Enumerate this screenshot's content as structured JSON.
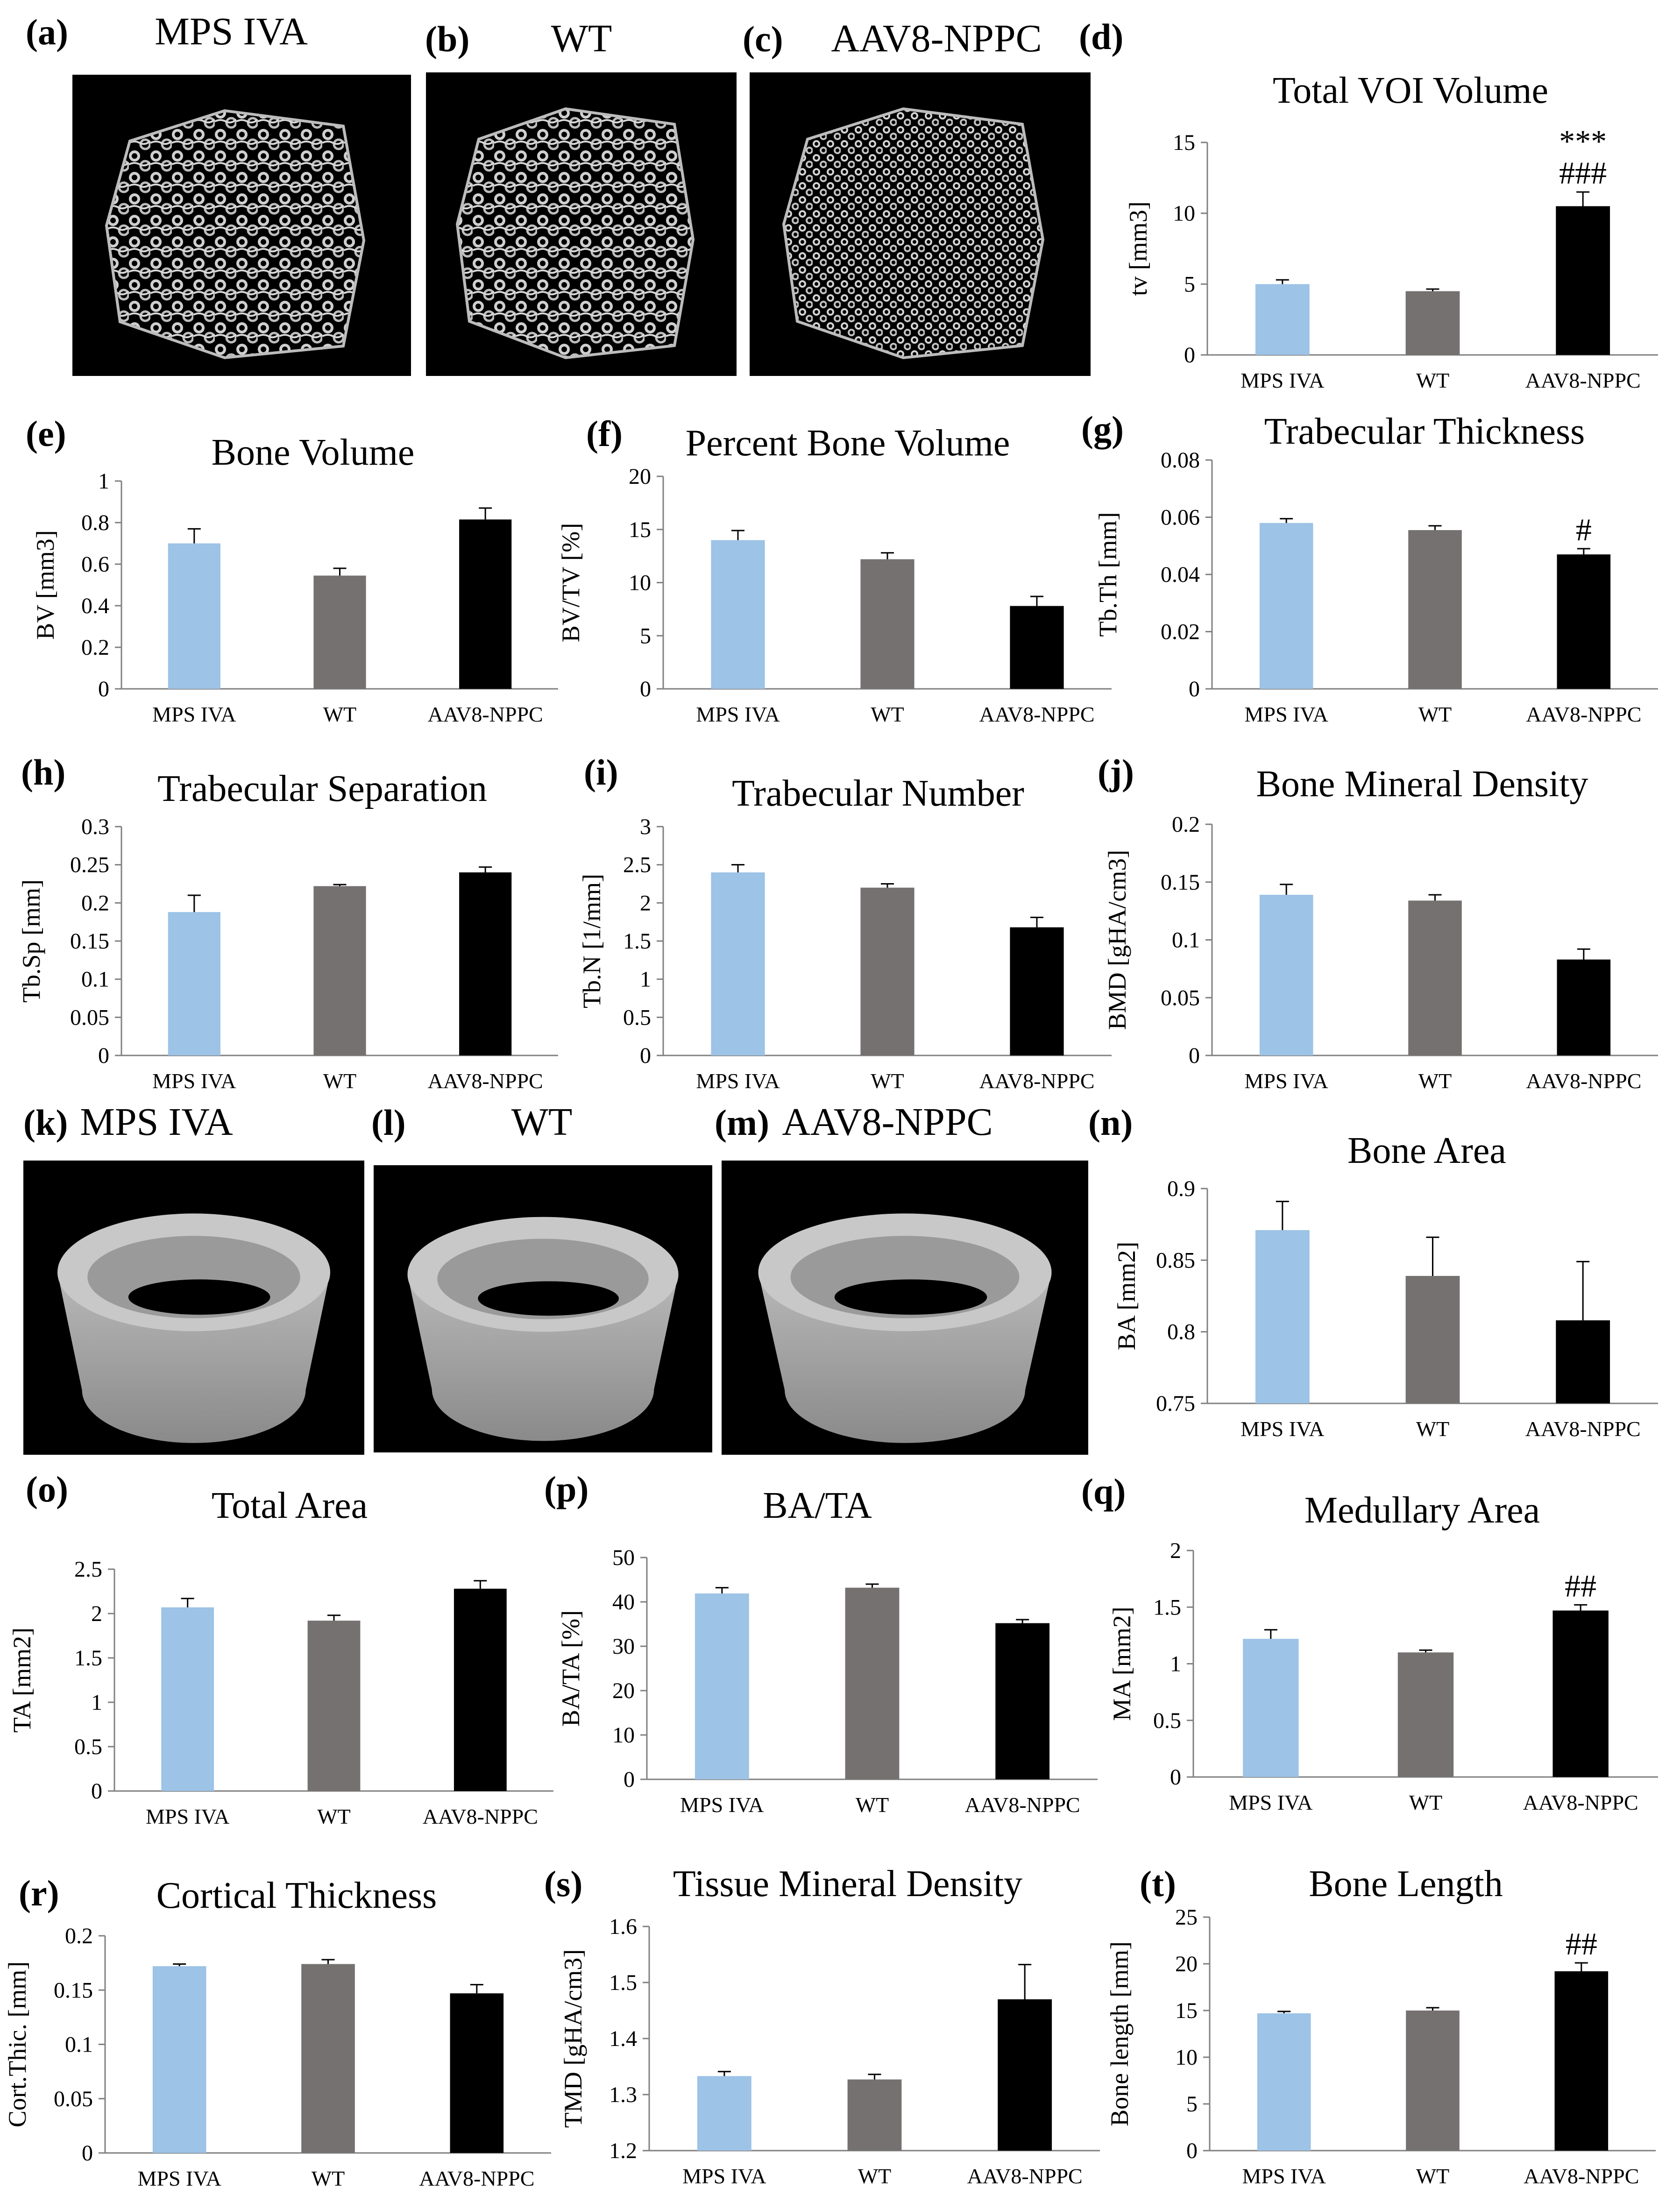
{
  "colors": {
    "mps_iva": "#9dc3e6",
    "wt": "#767171",
    "aav8": "#000000",
    "image_bg": "#000000",
    "bone": "#d0d0d0"
  },
  "image_panels": [
    {
      "id": "a",
      "label": "(a)",
      "title": "MPS IVA",
      "kind": "trabecular"
    },
    {
      "id": "b",
      "label": "(b)",
      "title": "WT",
      "kind": "trabecular"
    },
    {
      "id": "c",
      "label": "(c)",
      "title": "AAV8-NPPC",
      "kind": "trabecular"
    },
    {
      "id": "k",
      "label": "(k)",
      "title": "MPS IVA",
      "kind": "cortical"
    },
    {
      "id": "l",
      "label": "(l)",
      "title": "WT",
      "kind": "cortical"
    },
    {
      "id": "m",
      "label": "(m)",
      "title": "AAV8-NPPC",
      "kind": "cortical"
    }
  ],
  "chart_data": [
    {
      "id": "d",
      "label": "(d)",
      "type": "bar",
      "title": "Total VOI Volume",
      "ylabel": "tv [mm3]",
      "categories": [
        "MPS IVA",
        "WT",
        "AAV8-NPPC"
      ],
      "values": [
        5.0,
        4.5,
        10.5
      ],
      "errors": [
        0.3,
        0.15,
        1.0
      ],
      "ylim": [
        0,
        15
      ],
      "yticks": [
        "0",
        "5",
        "10",
        "15"
      ],
      "annotations": [
        "",
        "",
        "***\n###"
      ]
    },
    {
      "id": "e",
      "label": "(e)",
      "type": "bar",
      "title": "Bone Volume",
      "ylabel": "BV [mm3]",
      "categories": [
        "MPS IVA",
        "WT",
        "AAV8-NPPC"
      ],
      "values": [
        0.7,
        0.545,
        0.815
      ],
      "errors": [
        0.07,
        0.035,
        0.055
      ],
      "ylim": [
        0,
        1
      ],
      "yticks": [
        "0",
        "0.2",
        "0.4",
        "0.6",
        "0.8",
        "1"
      ],
      "annotations": [
        "",
        "",
        ""
      ]
    },
    {
      "id": "f",
      "label": "(f)",
      "type": "bar",
      "title": "Percent Bone Volume",
      "ylabel": "BV/TV [%]",
      "categories": [
        "MPS IVA",
        "WT",
        "AAV8-NPPC"
      ],
      "values": [
        14.0,
        12.2,
        7.8
      ],
      "errors": [
        0.9,
        0.6,
        0.9
      ],
      "ylim": [
        0,
        20
      ],
      "yticks": [
        "0",
        "5",
        "10",
        "15",
        "20"
      ],
      "annotations": [
        "",
        "",
        ""
      ]
    },
    {
      "id": "g",
      "label": "(g)",
      "type": "bar",
      "title": "Trabecular  Thickness",
      "ylabel": "Tb.Th [mm]",
      "categories": [
        "MPS IVA",
        "WT",
        "AAV8-NPPC"
      ],
      "values": [
        0.058,
        0.0555,
        0.047
      ],
      "errors": [
        0.0015,
        0.0015,
        0.002
      ],
      "ylim": [
        0,
        0.08
      ],
      "yticks": [
        "0",
        "0.02",
        "0.04",
        "0.06",
        "0.08"
      ],
      "annotations": [
        "",
        "",
        "#"
      ]
    },
    {
      "id": "h",
      "label": "(h)",
      "type": "bar",
      "title": "Trabecular  Separation",
      "ylabel": "Tb.Sp [mm]",
      "categories": [
        "MPS IVA",
        "WT",
        "AAV8-NPPC"
      ],
      "values": [
        0.188,
        0.222,
        0.24
      ],
      "errors": [
        0.022,
        0.002,
        0.007
      ],
      "ylim": [
        0,
        0.3
      ],
      "yticks": [
        "0",
        "0.05",
        "0.1",
        "0.15",
        "0.2",
        "0.25",
        "0.3"
      ],
      "annotations": [
        "",
        "",
        ""
      ]
    },
    {
      "id": "i",
      "label": "(i)",
      "type": "bar",
      "title": "Trabecular  Number",
      "ylabel": "Tb.N [1/mm]",
      "categories": [
        "MPS IVA",
        "WT",
        "AAV8-NPPC"
      ],
      "values": [
        2.4,
        2.2,
        1.68
      ],
      "errors": [
        0.1,
        0.05,
        0.13
      ],
      "ylim": [
        0,
        3
      ],
      "yticks": [
        "0",
        "0.5",
        "1",
        "1.5",
        "2",
        "2.5",
        "3"
      ],
      "annotations": [
        "",
        "",
        ""
      ]
    },
    {
      "id": "j",
      "label": "(j)",
      "type": "bar",
      "title": "Bone Mineral Density",
      "ylabel": "BMD [gHA/cm3]",
      "categories": [
        "MPS IVA",
        "WT",
        "AAV8-NPPC"
      ],
      "values": [
        0.139,
        0.134,
        0.083
      ],
      "errors": [
        0.009,
        0.005,
        0.009
      ],
      "ylim": [
        0,
        0.2
      ],
      "yticks": [
        "0",
        "0.05",
        "0.1",
        "0.15",
        "0.2"
      ],
      "annotations": [
        "",
        "",
        ""
      ]
    },
    {
      "id": "n",
      "label": "(n)",
      "type": "bar",
      "title": "Bone Area",
      "ylabel": "BA [mm2]",
      "categories": [
        "MPS IVA",
        "WT",
        "AAV8-NPPC"
      ],
      "values": [
        0.871,
        0.839,
        0.808
      ],
      "errors": [
        0.02,
        0.027,
        0.041
      ],
      "ylim": [
        0.75,
        0.9
      ],
      "yticks": [
        "0.75",
        "0.8",
        "0.85",
        "0.9"
      ],
      "annotations": [
        "",
        "",
        ""
      ]
    },
    {
      "id": "o",
      "label": "(o)",
      "type": "bar",
      "title": "Total Area",
      "ylabel": "TA [mm2]",
      "categories": [
        "MPS IVA",
        "WT",
        "AAV8-NPPC"
      ],
      "values": [
        2.07,
        1.92,
        2.28
      ],
      "errors": [
        0.1,
        0.06,
        0.09
      ],
      "ylim": [
        0,
        2.5
      ],
      "yticks": [
        "0",
        "0.5",
        "1",
        "1.5",
        "2",
        "2.5"
      ],
      "annotations": [
        "",
        "",
        ""
      ]
    },
    {
      "id": "p",
      "label": "(p)",
      "type": "bar",
      "title": "BA/TA",
      "ylabel": "BA/TA [%]",
      "categories": [
        "MPS IVA",
        "WT",
        "AAV8-NPPC"
      ],
      "values": [
        41.9,
        43.2,
        35.2
      ],
      "errors": [
        1.3,
        0.8,
        0.8
      ],
      "ylim": [
        0,
        50
      ],
      "yticks": [
        "0",
        "10",
        "20",
        "30",
        "40",
        "50"
      ],
      "annotations": [
        "",
        "",
        ""
      ]
    },
    {
      "id": "q",
      "label": "(q)",
      "type": "bar",
      "title": "Medullary Area",
      "ylabel": "MA [mm2]",
      "categories": [
        "MPS IVA",
        "WT",
        "AAV8-NPPC"
      ],
      "values": [
        1.22,
        1.1,
        1.47
      ],
      "errors": [
        0.08,
        0.02,
        0.05
      ],
      "ylim": [
        0,
        2
      ],
      "yticks": [
        "0",
        "0.5",
        "1",
        "1.5",
        "2"
      ],
      "annotations": [
        "",
        "",
        "##"
      ]
    },
    {
      "id": "r",
      "label": "(r)",
      "type": "bar",
      "title": "Cortical  Thickness",
      "ylabel": "Cort.Thic. [mm]",
      "categories": [
        "MPS IVA",
        "WT",
        "AAV8-NPPC"
      ],
      "values": [
        0.172,
        0.174,
        0.147
      ],
      "errors": [
        0.002,
        0.004,
        0.008
      ],
      "ylim": [
        0,
        0.2
      ],
      "yticks": [
        "0",
        "0.05",
        "0.1",
        "0.15",
        "0.2"
      ],
      "annotations": [
        "",
        "",
        ""
      ]
    },
    {
      "id": "s",
      "label": "(s)",
      "type": "bar",
      "title": "Tissue Mineral Density",
      "ylabel": "TMD [gHA/cm3]",
      "categories": [
        "MPS IVA",
        "WT",
        "AAV8-NPPC"
      ],
      "values": [
        1.333,
        1.327,
        1.47
      ],
      "errors": [
        0.008,
        0.009,
        0.062
      ],
      "ylim": [
        1.2,
        1.6
      ],
      "yticks": [
        "1.2",
        "1.3",
        "1.4",
        "1.5",
        "1.6"
      ],
      "annotations": [
        "",
        "",
        ""
      ]
    },
    {
      "id": "t",
      "label": "(t)",
      "type": "bar",
      "title": "Bone Length",
      "ylabel": "Bone length [mm]",
      "categories": [
        "MPS IVA",
        "WT",
        "AAV8-NPPC"
      ],
      "values": [
        14.7,
        15.0,
        19.2
      ],
      "errors": [
        0.2,
        0.3,
        0.9
      ],
      "ylim": [
        0,
        25
      ],
      "yticks": [
        "0",
        "5",
        "10",
        "15",
        "20",
        "25"
      ],
      "annotations": [
        "",
        "",
        "##"
      ]
    }
  ]
}
